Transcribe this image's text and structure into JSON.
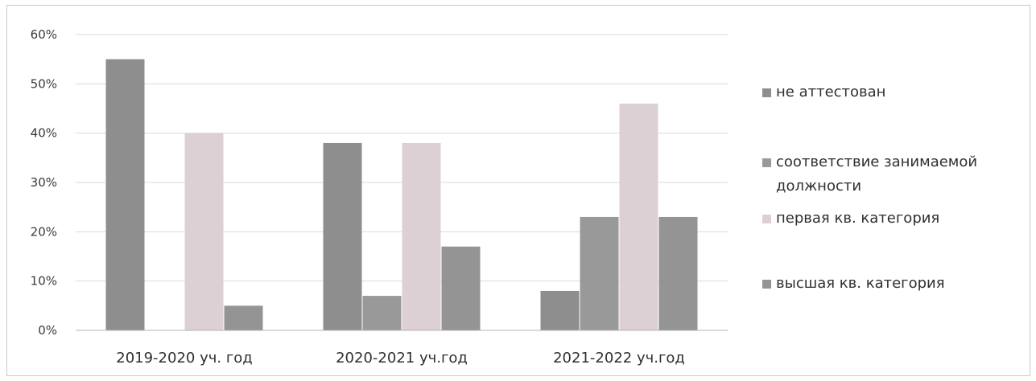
{
  "colors": {
    "series": [
      "#8e8e8e",
      "#999999",
      "#ddd0d4",
      "#949494"
    ],
    "grid": "#d9d9d9",
    "axis": "#b5b5b5"
  },
  "chart_data": {
    "type": "bar",
    "categories": [
      "2019-2020 уч. год",
      "2020-2021 уч.год",
      "2021-2022 уч.год"
    ],
    "series": [
      {
        "name": "не аттестован",
        "values": [
          55,
          38,
          8
        ]
      },
      {
        "name": "соответствие занимаемой должности",
        "values": [
          0,
          7,
          23
        ]
      },
      {
        "name": "первая кв. категория",
        "values": [
          40,
          38,
          46
        ]
      },
      {
        "name": "высшая кв. категория",
        "values": [
          5,
          17,
          23
        ]
      }
    ],
    "yticks": [
      "0%",
      "10%",
      "20%",
      "30%",
      "40%",
      "50%",
      "60%"
    ],
    "ylim": [
      0,
      60
    ],
    "grid": true,
    "legend_position": "right"
  }
}
